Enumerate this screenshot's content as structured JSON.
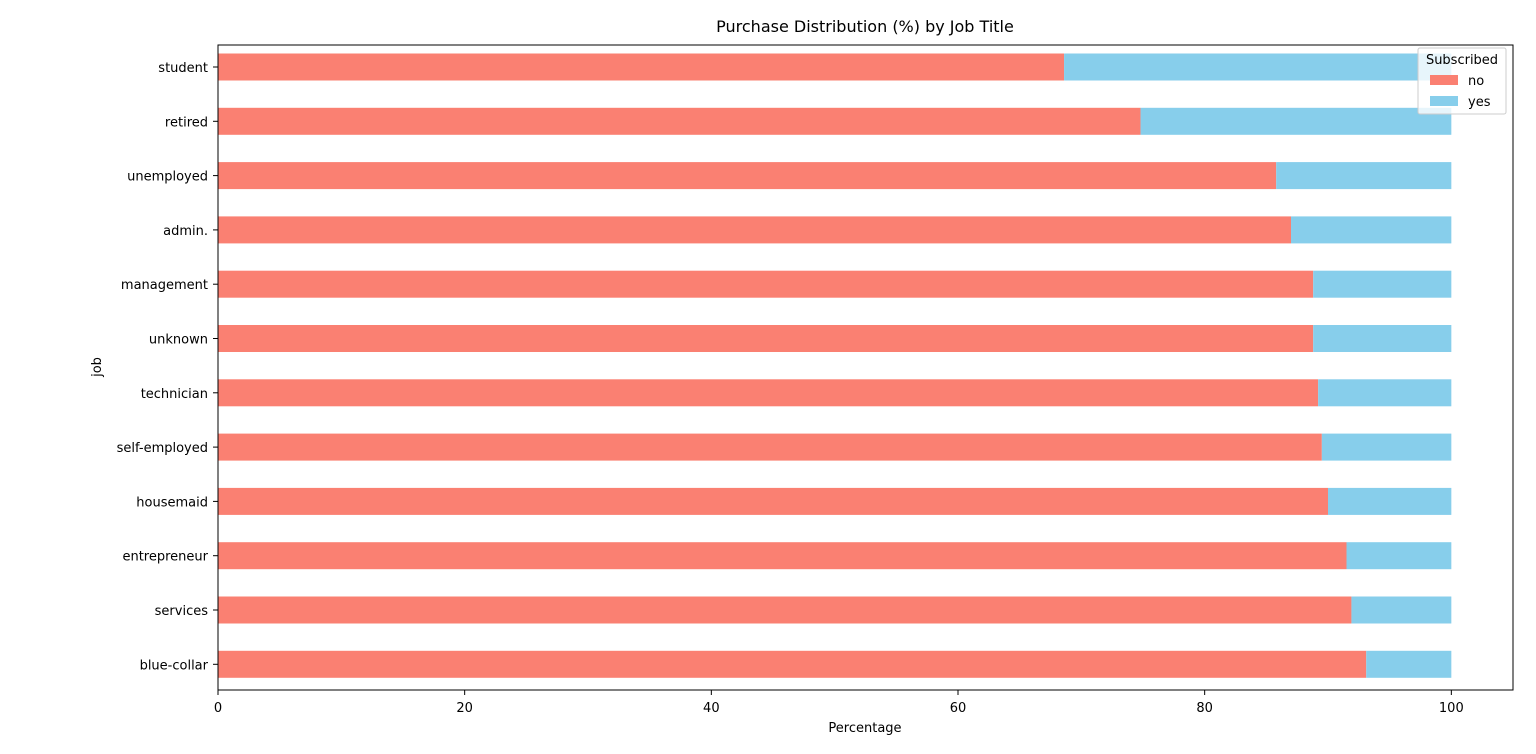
{
  "chart_data": {
    "type": "bar",
    "orientation": "horizontal",
    "stacked": true,
    "title": "Purchase Distribution (%) by Job Title",
    "xlabel": "Percentage",
    "ylabel": "job",
    "xlim": [
      0,
      105
    ],
    "xticks": [
      0,
      20,
      40,
      60,
      80,
      100
    ],
    "grid": false,
    "categories": [
      "student",
      "retired",
      "unemployed",
      "admin.",
      "management",
      "unknown",
      "technician",
      "self-employed",
      "housemaid",
      "entrepreneur",
      "services",
      "blue-collar"
    ],
    "series": [
      {
        "name": "no",
        "color": "#fa8072",
        "values": [
          68.6,
          74.8,
          85.8,
          87.0,
          88.8,
          88.8,
          89.2,
          89.5,
          90.0,
          91.5,
          91.9,
          93.1
        ]
      },
      {
        "name": "yes",
        "color": "#87ceeb",
        "values": [
          31.4,
          25.2,
          14.2,
          13.0,
          11.2,
          11.2,
          10.8,
          10.5,
          10.0,
          8.5,
          8.1,
          6.9
        ]
      }
    ],
    "legend": {
      "title": "Subscribed",
      "placement": "top-right"
    }
  }
}
